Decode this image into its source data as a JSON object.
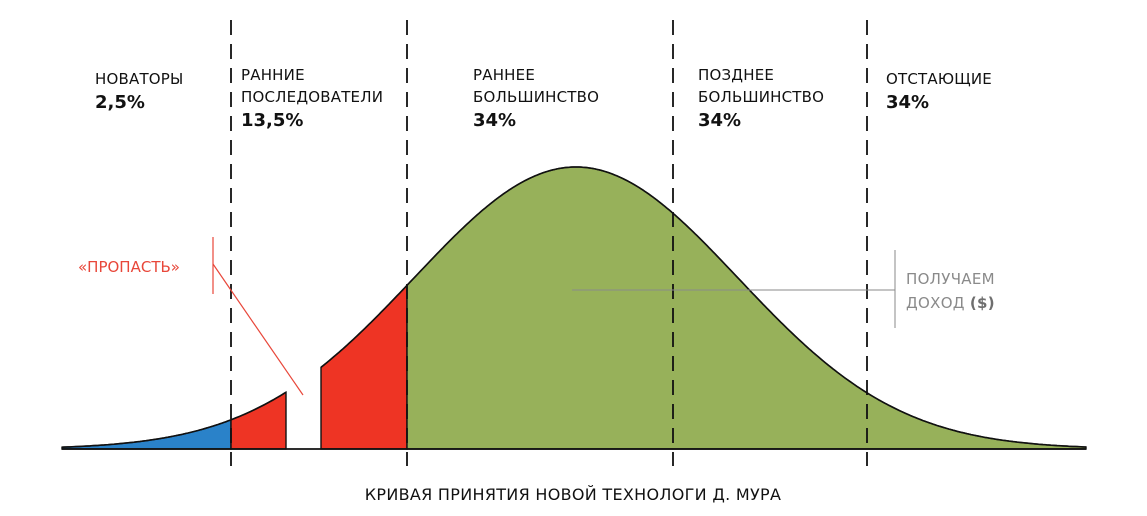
{
  "segments": [
    {
      "label_lines": [
        "НОВАТОРЫ"
      ],
      "percent": "2,5%"
    },
    {
      "label_lines": [
        "РАННИЕ",
        "ПОСЛЕДОВАТЕЛИ"
      ],
      "percent": "13,5%"
    },
    {
      "label_lines": [
        "РАННЕЕ",
        "БОЛЬШИНСТВО"
      ],
      "percent": "34%"
    },
    {
      "label_lines": [
        "ПОЗДНЕЕ",
        "БОЛЬШИНСТВО"
      ],
      "percent": "34%"
    },
    {
      "label_lines": [
        "ОТСТАЮЩИЕ"
      ],
      "percent": "34%"
    }
  ],
  "chasm": {
    "label": "«ПРОПАСТЬ»"
  },
  "revenue": {
    "line1": "ПОЛУЧАЕМ",
    "line2_prefix": "ДОХОД ",
    "line2_strong": "($)"
  },
  "caption": "КРИВАЯ ПРИНЯТИЯ НОВОЙ ТЕХНОЛОГИ Д. МУРА",
  "colors": {
    "innovators": "#2a82c9",
    "early_adopters": "#ee3424",
    "early_majority": "#97b15a",
    "late_majority": "#97b15a",
    "laggards": "#97b15a",
    "outline": "#111111",
    "chasm": "#e8473a",
    "revenue": "#8a8a8a"
  }
}
